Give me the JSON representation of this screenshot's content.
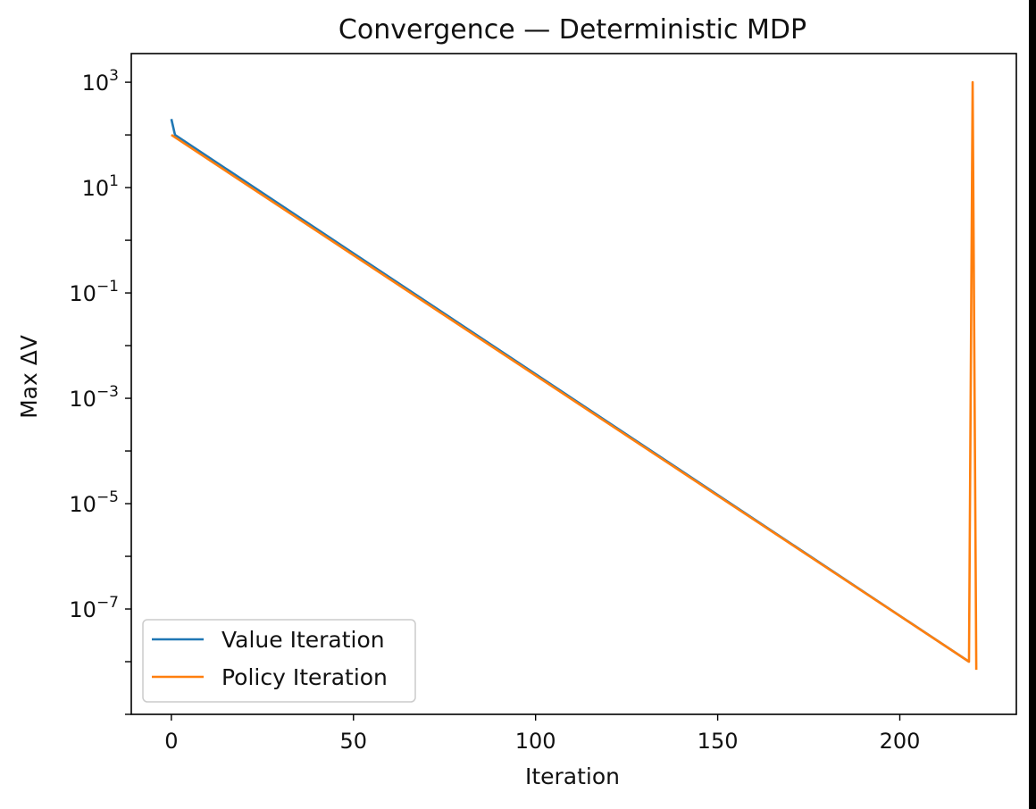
{
  "chart_data": {
    "type": "line",
    "title": "Convergence — Deterministic MDP",
    "xlabel": "Iteration",
    "ylabel": "Max ΔV",
    "yscale": "log",
    "xlim": [
      -11,
      232
    ],
    "ylim": [
      1e-09,
      3500.0
    ],
    "xticks": [
      0,
      50,
      100,
      150,
      200
    ],
    "xtick_labels": [
      "0",
      "50",
      "100",
      "150",
      "200"
    ],
    "yticks": [
      {
        "value": 1000,
        "base": "10",
        "exp": "3"
      },
      {
        "value": 10,
        "base": "10",
        "exp": "1"
      },
      {
        "value": 0.1,
        "base": "10",
        "exp": "−1"
      },
      {
        "value": 0.001,
        "base": "10",
        "exp": "−3"
      },
      {
        "value": 1e-05,
        "base": "10",
        "exp": "−5"
      },
      {
        "value": 1e-07,
        "base": "10",
        "exp": "−7"
      }
    ],
    "grid": false,
    "legend_position": "lower-left",
    "series": [
      {
        "name": "Value Iteration",
        "color": "#1f77b4",
        "x": [
          0,
          1,
          219
        ],
        "y": [
          200,
          100,
          1e-08
        ]
      },
      {
        "name": "Policy Iteration",
        "color": "#ff7f0e",
        "x": [
          0,
          219,
          220,
          221
        ],
        "y": [
          100,
          1e-08,
          1000,
          7e-09
        ]
      }
    ]
  }
}
